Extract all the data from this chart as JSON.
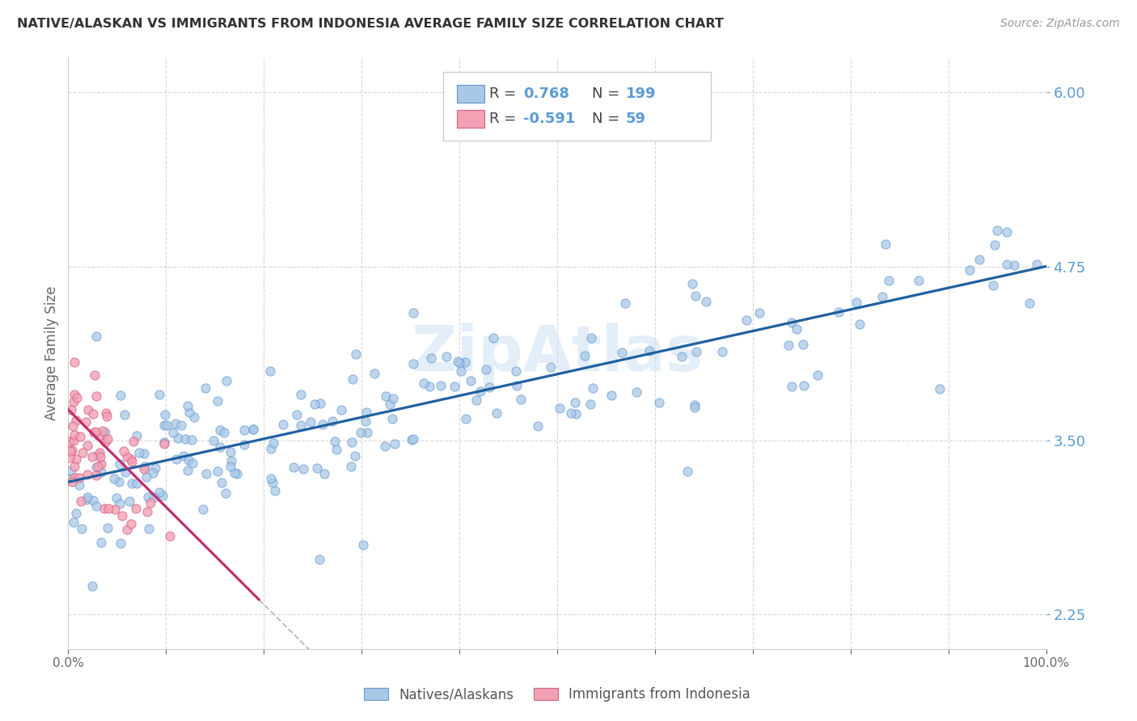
{
  "title": "NATIVE/ALASKAN VS IMMIGRANTS FROM INDONESIA AVERAGE FAMILY SIZE CORRELATION CHART",
  "source": "Source: ZipAtlas.com",
  "ylabel": "Average Family Size",
  "xlim": [
    0.0,
    1.0
  ],
  "ylim": [
    2.0,
    6.25
  ],
  "yticks": [
    2.25,
    3.5,
    4.75,
    6.0
  ],
  "ytick_labels": [
    "2.25",
    "3.50",
    "4.75",
    "6.00"
  ],
  "xticks": [
    0.0,
    0.1,
    0.2,
    0.3,
    0.4,
    0.5,
    0.6,
    0.7,
    0.8,
    0.9,
    1.0
  ],
  "xtick_labels": [
    "0.0%",
    "",
    "",
    "",
    "",
    "",
    "",
    "",
    "",
    "",
    "100.0%"
  ],
  "legend_labels": [
    "Natives/Alaskans",
    "Immigrants from Indonesia"
  ],
  "blue_scatter_color": "#a8c8e8",
  "blue_scatter_edge": "#6699cc",
  "pink_scatter_color": "#f4a0b5",
  "pink_scatter_edge": "#d06080",
  "blue_line_color": "#2060a0",
  "pink_line_color": "#c03070",
  "r_blue": "0.768",
  "n_blue": "199",
  "r_pink": "-0.591",
  "n_pink": "59",
  "watermark": "ZipAtlas",
  "background_color": "#ffffff",
  "grid_color": "#cccccc",
  "title_color": "#333333",
  "axis_label_color": "#5b9bd5",
  "source_color": "#999999"
}
